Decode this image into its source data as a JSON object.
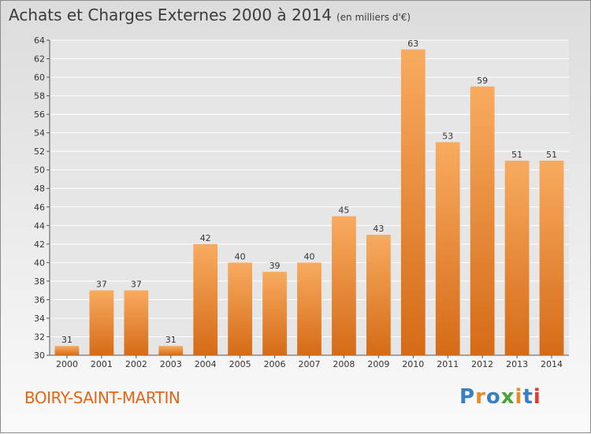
{
  "header": {
    "title": "Achats et Charges Externes 2000 à 2014",
    "subtitle": "(en milliers d'€)"
  },
  "footer": {
    "place": "BOIRY-SAINT-MARTIN",
    "logo": "Proxiti",
    "logo_colors": [
      "#3a7fc1",
      "#e8892a",
      "#3a7fc1",
      "#4aa33a",
      "#e8892a",
      "#3a7fc1",
      "#e03b2c"
    ]
  },
  "colors": {
    "bar_light": "#f6a65a",
    "bar_dark": "#d86e1a",
    "axis": "#555555",
    "grid": "#ffffff"
  },
  "chart_data": {
    "type": "bar",
    "title": "Achats et Charges Externes 2000 à 2014",
    "subtitle": "(en milliers d'€)",
    "categories": [
      "2000",
      "2001",
      "2002",
      "2003",
      "2004",
      "2005",
      "2006",
      "2007",
      "2008",
      "2009",
      "2010",
      "2011",
      "2012",
      "2013",
      "2014"
    ],
    "values": [
      31,
      37,
      37,
      31,
      42,
      40,
      39,
      40,
      45,
      43,
      63,
      53,
      59,
      51,
      51
    ],
    "ylim": [
      30,
      64
    ],
    "yticks": [
      30,
      32,
      34,
      36,
      38,
      40,
      42,
      44,
      46,
      48,
      50,
      52,
      54,
      56,
      58,
      60,
      62,
      64
    ],
    "grid": true,
    "data_labels": true
  }
}
